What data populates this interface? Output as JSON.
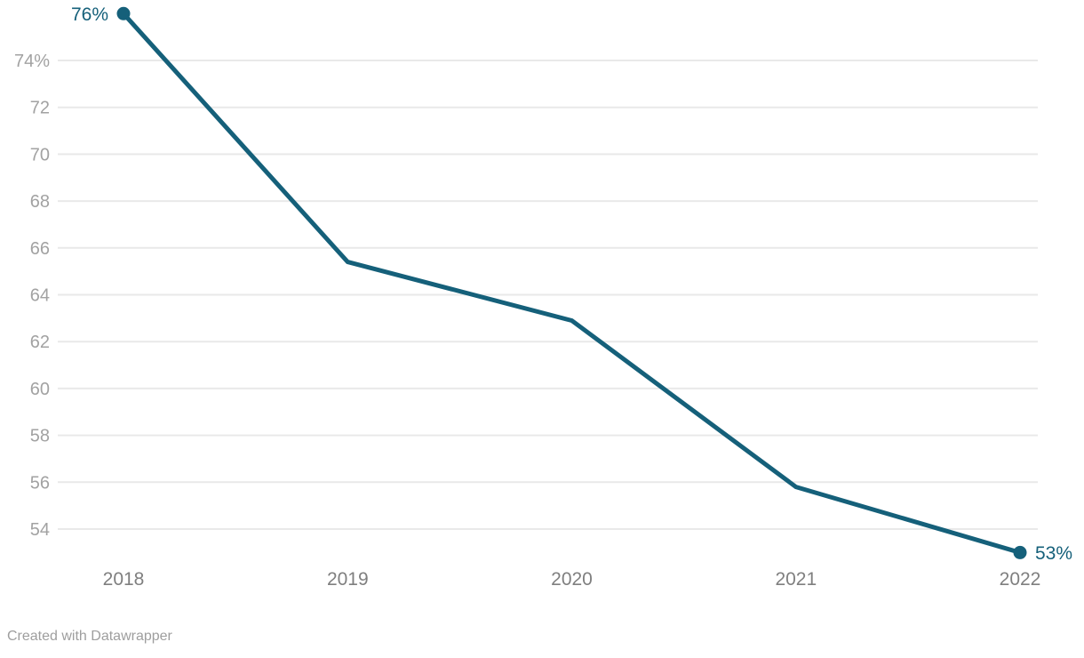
{
  "chart_data": {
    "type": "line",
    "title": "",
    "xlabel": "",
    "ylabel": "",
    "x": [
      "2018",
      "2019",
      "2020",
      "2021",
      "2022"
    ],
    "series": [
      {
        "name": "value",
        "values": [
          76,
          65.4,
          62.9,
          55.8,
          53
        ]
      }
    ],
    "point_labels": [
      {
        "x": "2018",
        "text": "76%",
        "side": "left"
      },
      {
        "x": "2022",
        "text": "53%",
        "side": "right"
      }
    ],
    "yticks": [
      74,
      72,
      70,
      68,
      66,
      64,
      62,
      60,
      58,
      56,
      54
    ],
    "ytick_labels": [
      "74%",
      "72",
      "70",
      "68",
      "66",
      "64",
      "62",
      "60",
      "58",
      "56",
      "54"
    ],
    "ylim": [
      52.8,
      76.3
    ],
    "grid": true,
    "legend_position": "none",
    "colors": {
      "line": "#15607a",
      "marker": "#15607a",
      "point_label": "#15607a",
      "grid": "#e9e9e9",
      "ytick_text": "#a2a2a2",
      "xtick_text": "#7f7f7f",
      "footer_text": "#9e9e9e",
      "background": "#ffffff"
    }
  },
  "footer": {
    "credit": "Created with Datawrapper"
  }
}
